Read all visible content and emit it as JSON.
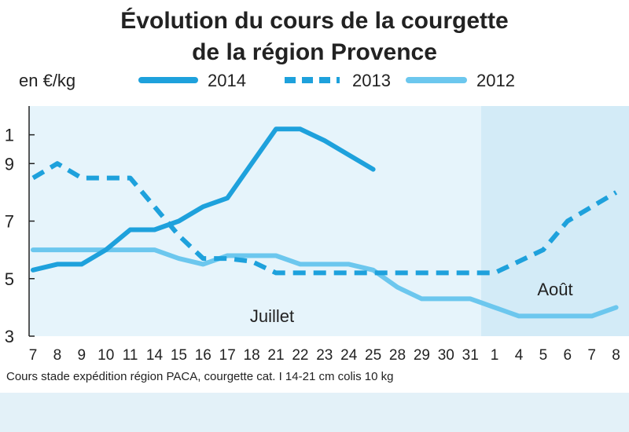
{
  "chart_data": {
    "type": "line",
    "title": [
      "Évolution du cours de la courgette",
      "de la région Provence"
    ],
    "unit_label": "en €/kg",
    "x_categories": [
      "7",
      "8",
      "9",
      "10",
      "11",
      "14",
      "15",
      "16",
      "17",
      "18",
      "21",
      "22",
      "23",
      "24",
      "25",
      "28",
      "29",
      "30",
      "31",
      "1",
      "4",
      "5",
      "6",
      "7",
      "8"
    ],
    "y_ticks": [
      "1",
      "9",
      "7",
      "5",
      "3"
    ],
    "ylim": [
      0.3,
      1.1
    ],
    "month_labels": {
      "july": "Juillet",
      "august": "Août"
    },
    "footnote": "Cours stade expédition région PACA, courgette cat. I 14-21 cm colis 10 kg",
    "series": [
      {
        "name": "2014",
        "style": "solid",
        "color": "#1ea1dc",
        "values": [
          0.53,
          0.55,
          0.55,
          0.6,
          0.67,
          0.67,
          0.7,
          0.75,
          0.78,
          0.9,
          1.02,
          1.02,
          0.98,
          0.93,
          0.88,
          null,
          null,
          null,
          null,
          null,
          null,
          null,
          null,
          null,
          null
        ]
      },
      {
        "name": "2013",
        "style": "dashed",
        "color": "#1ea1dc",
        "values": [
          0.85,
          0.9,
          0.85,
          0.85,
          0.85,
          0.75,
          0.65,
          0.57,
          0.57,
          0.56,
          0.52,
          0.52,
          0.52,
          0.52,
          0.52,
          0.52,
          0.52,
          0.52,
          0.52,
          0.52,
          0.56,
          0.6,
          0.7,
          0.75,
          0.8
        ]
      },
      {
        "name": "2012",
        "style": "solid",
        "color": "#6cc7ee",
        "values": [
          0.6,
          0.6,
          0.6,
          0.6,
          0.6,
          0.6,
          0.57,
          0.55,
          0.58,
          0.58,
          0.58,
          0.55,
          0.55,
          0.55,
          0.53,
          0.47,
          0.43,
          0.43,
          0.43,
          0.4,
          0.37,
          0.37,
          0.37,
          0.37,
          0.4
        ]
      }
    ],
    "colors": {
      "plot_background": "#e6f4fb",
      "august_background": "#d3ebf7"
    }
  }
}
